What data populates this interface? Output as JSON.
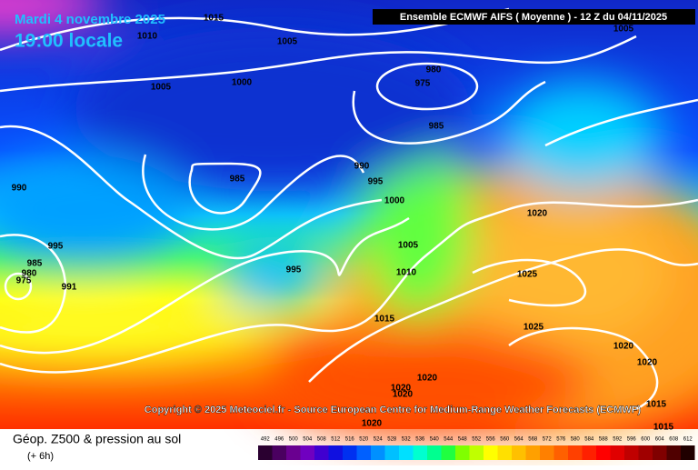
{
  "header": {
    "date": "Mardi 4 novembre 2025",
    "time": "19:00 locale",
    "model": "Ensemble ECMWF AIFS  ( Moyenne )  -  12 Z du 04/11/2025"
  },
  "isobar_labels": [
    "1015",
    "1010",
    "1005",
    "1005",
    "1005",
    "1000",
    "980",
    "975",
    "985",
    "990",
    "985",
    "995",
    "1000",
    "990",
    "1020",
    "995",
    "985",
    "980",
    "975",
    "991",
    "1005",
    "1010",
    "995",
    "1025",
    "1015",
    "1025",
    "1020",
    "1020",
    "1020",
    "1020",
    "1020",
    "1015",
    "1020",
    "1015"
  ],
  "copyright": "Copyright © 2025 Meteociel.fr - Source European Centre for Medium-Range Weather Forecasts (ECMWF)",
  "legend": {
    "title": "Géop. Z500 & pression au sol",
    "step": "(+ 6h)",
    "scale": [
      "492",
      "496",
      "500",
      "504",
      "508",
      "512",
      "516",
      "520",
      "524",
      "528",
      "532",
      "536",
      "540",
      "544",
      "548",
      "552",
      "556",
      "560",
      "564",
      "568",
      "572",
      "576",
      "580",
      "584",
      "588",
      "592",
      "596",
      "600",
      "604",
      "608",
      "612"
    ],
    "colors": [
      "#2a0030",
      "#4a0060",
      "#6a0090",
      "#7000c0",
      "#4000d0",
      "#1010e0",
      "#0030f0",
      "#0060ff",
      "#0090ff",
      "#00c0ff",
      "#00e0ff",
      "#00ffd0",
      "#00ff90",
      "#20ff40",
      "#80ff00",
      "#c0ff00",
      "#ffff00",
      "#ffe000",
      "#ffc000",
      "#ffa000",
      "#ff8000",
      "#ff6000",
      "#ff4000",
      "#ff2000",
      "#ff0000",
      "#e00000",
      "#c00000",
      "#a00000",
      "#800000",
      "#500000",
      "#200000"
    ]
  }
}
